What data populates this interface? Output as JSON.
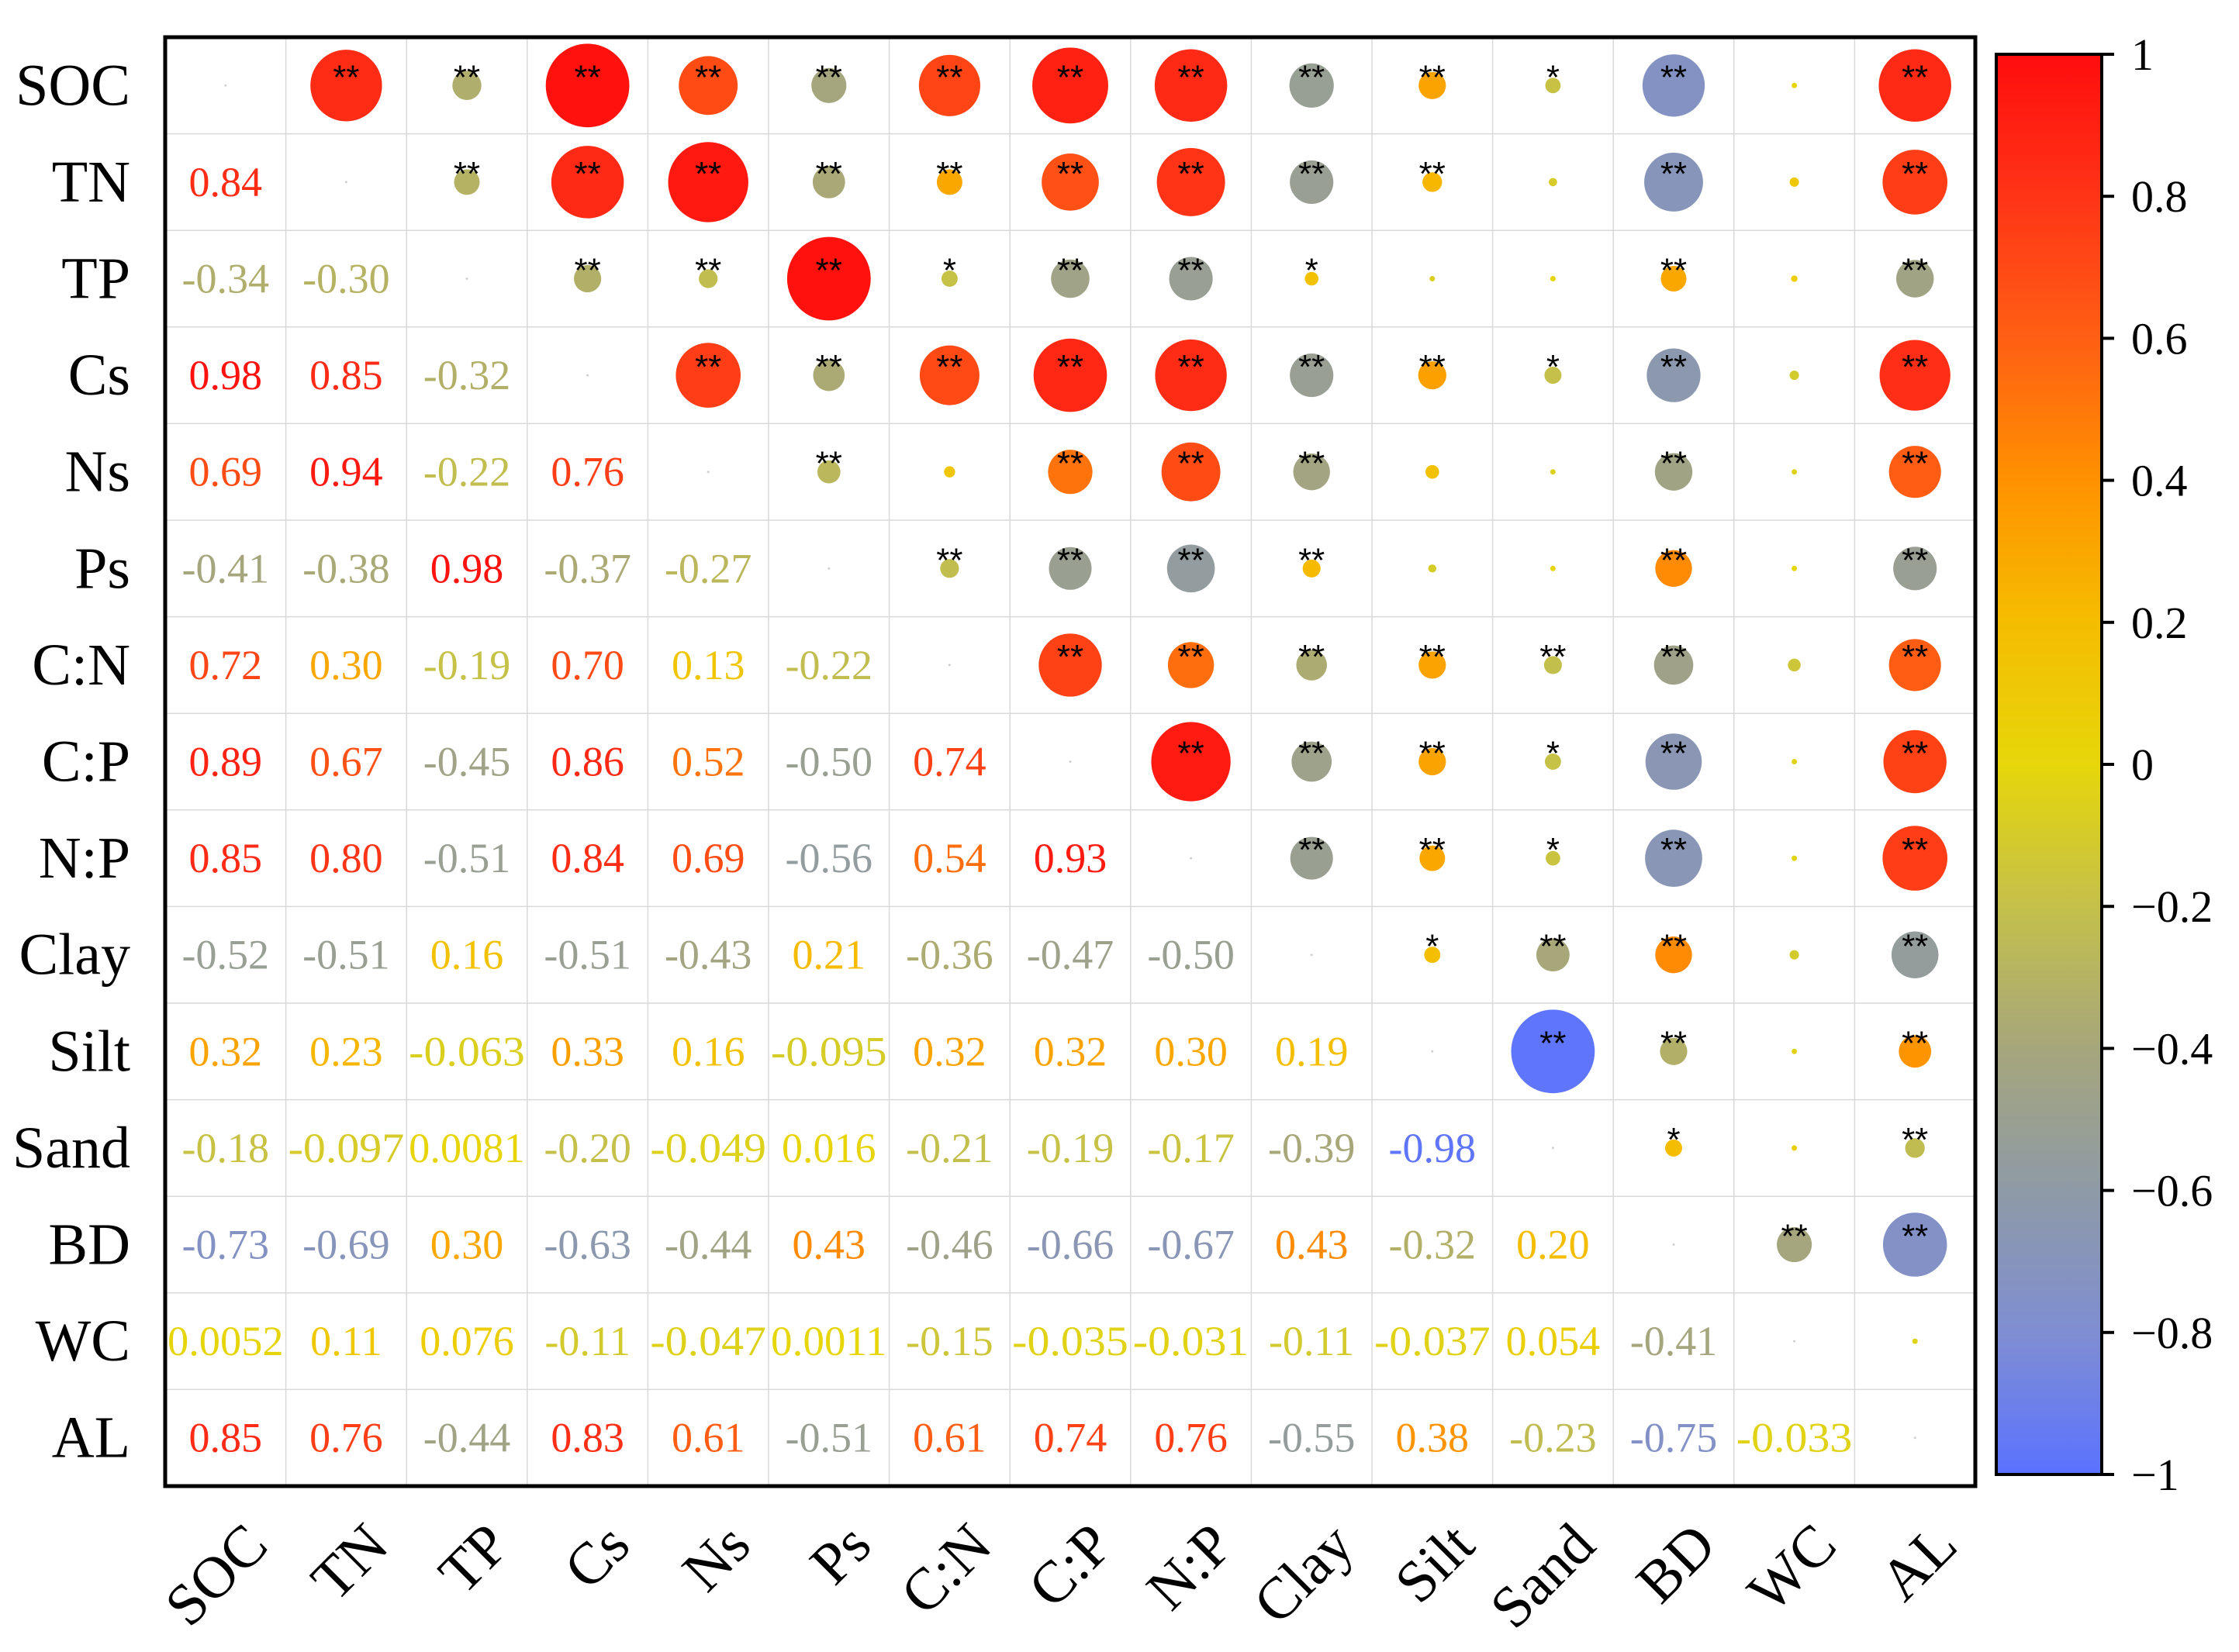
{
  "chart_data": {
    "type": "heatmap",
    "subtype": "correlation-matrix",
    "title": "",
    "variables": [
      "SOC",
      "TN",
      "TP",
      "Cs",
      "Ns",
      "Ps",
      "C:N",
      "C:P",
      "N:P",
      "Clay",
      "Silt",
      "Sand",
      "BD",
      "WC",
      "AL"
    ],
    "lower_labels": [
      [
        "",
        "",
        "",
        "",
        "",
        "",
        "",
        "",
        "",
        "",
        "",
        "",
        "",
        "",
        ""
      ],
      [
        "0.84",
        "",
        "",
        "",
        "",
        "",
        "",
        "",
        "",
        "",
        "",
        "",
        "",
        "",
        ""
      ],
      [
        "-0.34",
        "-0.30",
        "",
        "",
        "",
        "",
        "",
        "",
        "",
        "",
        "",
        "",
        "",
        "",
        ""
      ],
      [
        "0.98",
        "0.85",
        "-0.32",
        "",
        "",
        "",
        "",
        "",
        "",
        "",
        "",
        "",
        "",
        "",
        ""
      ],
      [
        "0.69",
        "0.94",
        "-0.22",
        "0.76",
        "",
        "",
        "",
        "",
        "",
        "",
        "",
        "",
        "",
        "",
        ""
      ],
      [
        "-0.41",
        "-0.38",
        "0.98",
        "-0.37",
        "-0.27",
        "",
        "",
        "",
        "",
        "",
        "",
        "",
        "",
        "",
        ""
      ],
      [
        "0.72",
        "0.30",
        "-0.19",
        "0.70",
        "0.13",
        "-0.22",
        "",
        "",
        "",
        "",
        "",
        "",
        "",
        "",
        ""
      ],
      [
        "0.89",
        "0.67",
        "-0.45",
        "0.86",
        "0.52",
        "-0.50",
        "0.74",
        "",
        "",
        "",
        "",
        "",
        "",
        "",
        ""
      ],
      [
        "0.85",
        "0.80",
        "-0.51",
        "0.84",
        "0.69",
        "-0.56",
        "0.54",
        "0.93",
        "",
        "",
        "",
        "",
        "",
        "",
        ""
      ],
      [
        "-0.52",
        "-0.51",
        "0.16",
        "-0.51",
        "-0.43",
        "0.21",
        "-0.36",
        "-0.47",
        "-0.50",
        "",
        "",
        "",
        "",
        "",
        ""
      ],
      [
        "0.32",
        "0.23",
        "-0.063",
        "0.33",
        "0.16",
        "-0.095",
        "0.32",
        "0.32",
        "0.30",
        "0.19",
        "",
        "",
        "",
        "",
        ""
      ],
      [
        "-0.18",
        "-0.097",
        "0.0081",
        "-0.20",
        "-0.049",
        "0.016",
        "-0.21",
        "-0.19",
        "-0.17",
        "-0.39",
        "-0.98",
        "",
        "",
        "",
        ""
      ],
      [
        "-0.73",
        "-0.69",
        "0.30",
        "-0.63",
        "-0.44",
        "0.43",
        "-0.46",
        "-0.66",
        "-0.67",
        "0.43",
        "-0.32",
        "0.20",
        "",
        "",
        ""
      ],
      [
        "0.0052",
        "0.11",
        "0.076",
        "-0.11",
        "-0.047",
        "0.0011",
        "-0.15",
        "-0.035",
        "-0.031",
        "-0.11",
        "-0.037",
        "0.054",
        "-0.41",
        "",
        ""
      ],
      [
        "0.85",
        "0.76",
        "-0.44",
        "0.83",
        "0.61",
        "-0.51",
        "0.61",
        "0.74",
        "0.76",
        "-0.55",
        "0.38",
        "-0.23",
        "-0.75",
        "-0.033",
        ""
      ]
    ],
    "significance": [
      [
        "",
        "**",
        "**",
        "**",
        "**",
        "**",
        "**",
        "**",
        "**",
        "**",
        "**",
        "*",
        "**",
        "",
        "**"
      ],
      [
        "",
        "",
        "**",
        "**",
        "**",
        "**",
        "**",
        "**",
        "**",
        "**",
        "**",
        "",
        "**",
        "",
        "**"
      ],
      [
        "",
        "",
        "",
        "**",
        "**",
        "**",
        "*",
        "**",
        "**",
        "*",
        "",
        "",
        "**",
        "",
        "**"
      ],
      [
        "",
        "",
        "",
        "",
        "**",
        "**",
        "**",
        "**",
        "**",
        "**",
        "**",
        "*",
        "**",
        "",
        "**"
      ],
      [
        "",
        "",
        "",
        "",
        "",
        "**",
        "",
        "**",
        "**",
        "**",
        "",
        "",
        "**",
        "",
        "**"
      ],
      [
        "",
        "",
        "",
        "",
        "",
        "",
        "**",
        "**",
        "**",
        "**",
        "",
        "",
        "**",
        "",
        "**"
      ],
      [
        "",
        "",
        "",
        "",
        "",
        "",
        "",
        "**",
        "**",
        "**",
        "**",
        "**",
        "**",
        "",
        "**"
      ],
      [
        "",
        "",
        "",
        "",
        "",
        "",
        "",
        "",
        "**",
        "**",
        "**",
        "*",
        "**",
        "",
        "**"
      ],
      [
        "",
        "",
        "",
        "",
        "",
        "",
        "",
        "",
        "",
        "**",
        "**",
        "*",
        "**",
        "",
        "**"
      ],
      [
        "",
        "",
        "",
        "",
        "",
        "",
        "",
        "",
        "",
        "",
        "*",
        "**",
        "**",
        "",
        "**"
      ],
      [
        "",
        "",
        "",
        "",
        "",
        "",
        "",
        "",
        "",
        "",
        "",
        "**",
        "**",
        "",
        "**"
      ],
      [
        "",
        "",
        "",
        "",
        "",
        "",
        "",
        "",
        "",
        "",
        "",
        "",
        "*",
        "",
        "**"
      ],
      [
        "",
        "",
        "",
        "",
        "",
        "",
        "",
        "",
        "",
        "",
        "",
        "",
        "",
        "**",
        "**"
      ],
      [
        "",
        "",
        "",
        "",
        "",
        "",
        "",
        "",
        "",
        "",
        "",
        "",
        "",
        "",
        ""
      ],
      [
        "",
        "",
        "",
        "",
        "",
        "",
        "",
        "",
        "",
        "",
        "",
        "",
        "",
        "",
        ""
      ]
    ],
    "upper_representation": "circle size and color proportional to correlation coefficient",
    "colorbar": {
      "range": [
        -1,
        1
      ],
      "ticks": [
        "1",
        "0.8",
        "0.6",
        "0.4",
        "0.2",
        "0",
        "−0.2",
        "−0.4",
        "−0.6",
        "−0.8",
        "−1"
      ],
      "tick_values": [
        1,
        0.8,
        0.6,
        0.4,
        0.2,
        0,
        -0.2,
        -0.4,
        -0.6,
        -0.8,
        -1
      ],
      "colors": [
        {
          "value": -1.0,
          "color": "#5b72ff"
        },
        {
          "value": -0.8,
          "color": "#7f8ed2"
        },
        {
          "value": -0.6,
          "color": "#8e9aa6"
        },
        {
          "value": -0.4,
          "color": "#a6a67c"
        },
        {
          "value": -0.2,
          "color": "#c4c04a"
        },
        {
          "value": 0.0,
          "color": "#e6d60a"
        },
        {
          "value": 0.2,
          "color": "#f5bd00"
        },
        {
          "value": 0.4,
          "color": "#ff9100"
        },
        {
          "value": 0.6,
          "color": "#ff5f14"
        },
        {
          "value": 0.8,
          "color": "#ff3417"
        },
        {
          "value": 1.0,
          "color": "#ff0d0d"
        }
      ]
    }
  }
}
